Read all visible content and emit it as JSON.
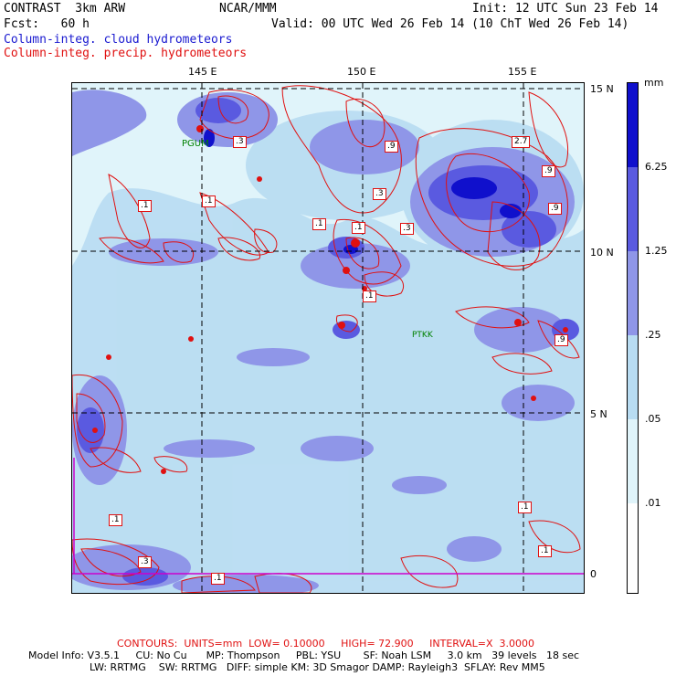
{
  "header": {
    "model": "CONTRAST  3km ARW",
    "center": "NCAR/MMM",
    "init": "Init: 12 UTC Sun 23 Feb 14",
    "fcst": "Fcst:   60 h",
    "valid": "Valid: 00 UTC Wed 26 Feb 14 (10 ChT Wed 26 Feb 14)",
    "field1": "Column-integ. cloud hydrometeors",
    "field2": "Column-integ. precip. hydrometeors"
  },
  "colors": {
    "cloud_fill_levels": [
      "#ffffff",
      "#e0f4fa",
      "#b8dcf2",
      "#8f96e8",
      "#5a5ae0",
      "#1010cc"
    ],
    "contour": "#e01010",
    "station": "#008000",
    "equator_line": "#cc00cc"
  },
  "axes": {
    "lon_labels": [
      "145 E",
      "150 E",
      "155 E"
    ],
    "lat_labels": [
      "15 N",
      "10 N",
      "5 N",
      "0"
    ]
  },
  "stations": [
    {
      "id": "PGUM"
    },
    {
      "id": "PTKK"
    }
  ],
  "contour_labels": [
    ".3",
    ".9",
    "2.7",
    ".9",
    ".1",
    ".1",
    ".3",
    ".9",
    ".1",
    ".3",
    ".1",
    ".1",
    ".9",
    ".1",
    ".1",
    ".1",
    ".3",
    ".1"
  ],
  "legend": {
    "unit": "mm",
    "levels": [
      "6.25",
      "1.25",
      ".25",
      ".05",
      ".01"
    ]
  },
  "footer": {
    "contours": "CONTOURS:  UNITS=mm  LOW= 0.10000     HIGH= 72.900     INTERVAL=X  3.0000",
    "line1": "Model Info: V3.5.1     CU: No Cu      MP: Thompson     PBL: YSU       SF: Noah LSM     3.0 km   39 levels   18 sec",
    "line2": "LW: RRTMG    SW: RRTMG   DIFF: simple KM: 3D Smagor DAMP: Rayleigh3  SFLAY: Rev MM5"
  }
}
